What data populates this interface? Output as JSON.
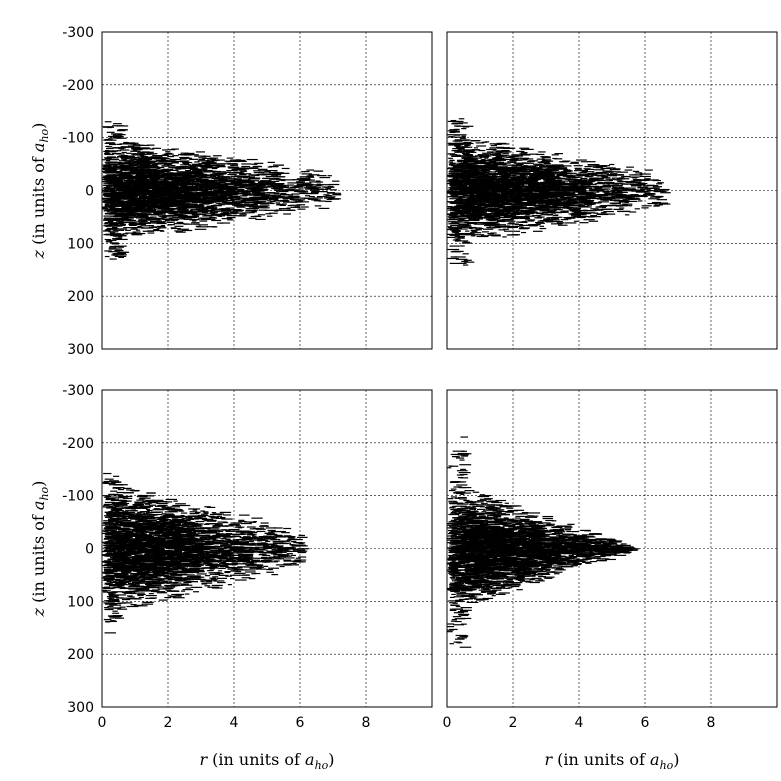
{
  "chart_data": [
    {
      "type": "scatter",
      "panel": "top-left",
      "title": "",
      "xlim": [
        0,
        10
      ],
      "ylim": [
        -300,
        300
      ],
      "y_inverted": true,
      "grid": true,
      "x_ticks": [],
      "y_ticks": [
        "-300",
        "-200",
        "-100",
        "0",
        "100",
        "200",
        "300"
      ],
      "xlabel": "",
      "ylabel": {
        "var": "z",
        "text": " (in units of ",
        "sym": "a",
        "sub": "ho",
        "close": ")"
      },
      "cloud": {
        "r_max": 7.0,
        "z_max": 80,
        "taper": 0.35,
        "z_spread_at_axis": 130
      }
    },
    {
      "type": "scatter",
      "panel": "top-right",
      "title": "",
      "xlim": [
        0,
        10
      ],
      "ylim": [
        -300,
        300
      ],
      "y_inverted": true,
      "grid": true,
      "x_ticks": [],
      "y_ticks": [],
      "xlabel": "",
      "ylabel": "",
      "cloud": {
        "r_max": 6.5,
        "z_max": 85,
        "taper": 0.35,
        "z_spread_at_axis": 140
      }
    },
    {
      "type": "scatter",
      "panel": "bottom-left",
      "title": "",
      "xlim": [
        0,
        10
      ],
      "ylim": [
        -300,
        300
      ],
      "y_inverted": true,
      "grid": true,
      "x_ticks": [
        "0",
        "2",
        "4",
        "6",
        "8"
      ],
      "y_ticks": [
        "-300",
        "-200",
        "-100",
        "0",
        "100",
        "200",
        "300"
      ],
      "xlabel": {
        "var": "r",
        "text": " (in units of ",
        "sym": "a",
        "sub": "ho",
        "close": ")"
      },
      "ylabel": {
        "var": "z",
        "text": " (in units of ",
        "sym": "a",
        "sub": "ho",
        "close": ")"
      },
      "cloud": {
        "r_max": 6.0,
        "z_max": 100,
        "taper": 0.3,
        "z_spread_at_axis": 140
      }
    },
    {
      "type": "scatter",
      "panel": "bottom-right",
      "title": "",
      "xlim": [
        0,
        10
      ],
      "ylim": [
        -300,
        300
      ],
      "y_inverted": true,
      "grid": true,
      "x_ticks": [
        "0",
        "2",
        "4",
        "6",
        "8"
      ],
      "y_ticks": [],
      "xlabel": {
        "var": "r",
        "text": " (in units of ",
        "sym": "a",
        "sub": "ho",
        "close": ")"
      },
      "ylabel": "",
      "cloud": {
        "r_max": 5.5,
        "z_max": 100,
        "taper": 0.05,
        "z_spread_at_axis": 190
      }
    }
  ]
}
